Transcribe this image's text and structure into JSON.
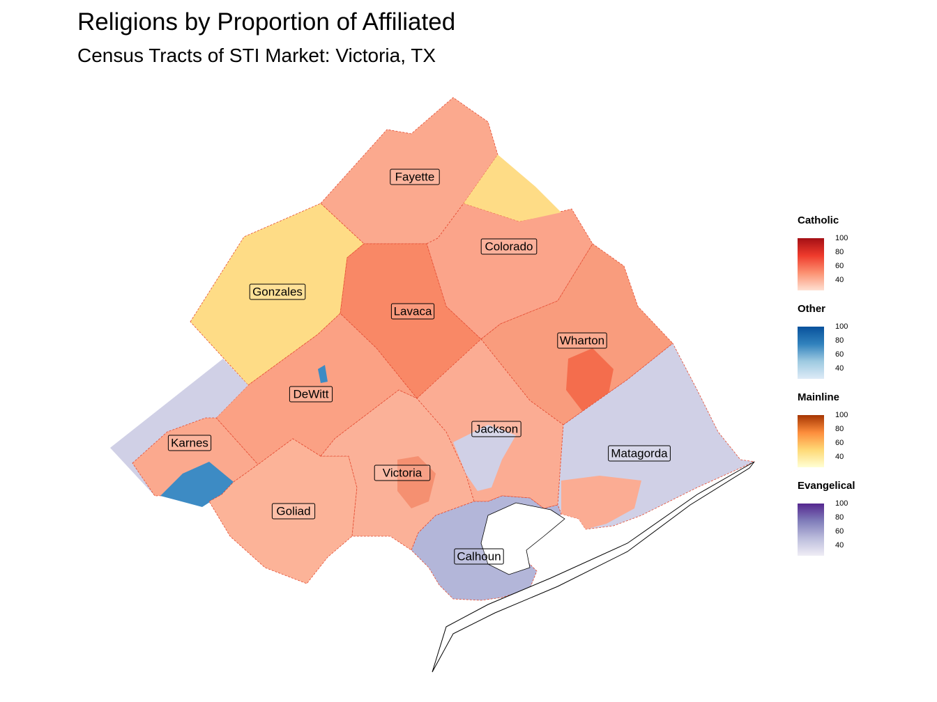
{
  "title": "Religions by Proportion of Affiliated",
  "subtitle": "Census Tracts of STI Market: Victoria, TX",
  "counties": [
    {
      "name": "Fayette",
      "fill": "#fba98e"
    },
    {
      "name": "Colorado",
      "fill": "#fba48a"
    },
    {
      "name": "Gonzales",
      "fill": "#fedc86"
    },
    {
      "name": "Lavaca",
      "fill": "#f98866"
    },
    {
      "name": "Wharton",
      "fill": "#f99c7d"
    },
    {
      "name": "DeWitt",
      "fill": "#fba184"
    },
    {
      "name": "Karnes",
      "fill": "#fba98e"
    },
    {
      "name": "Jackson",
      "fill": "#fbac93"
    },
    {
      "name": "Matagorda",
      "fill": "#d0d0e6"
    },
    {
      "name": "Victoria",
      "fill": "#fbb198"
    },
    {
      "name": "Goliad",
      "fill": "#fcb398"
    },
    {
      "name": "Calhoun",
      "fill": "#b3b6d9"
    }
  ],
  "legend": [
    {
      "title": "Catholic",
      "ticks": [
        "100",
        "80",
        "60",
        "40"
      ],
      "colors": [
        "#a50f15",
        "#ef3b2c",
        "#fc9272",
        "#fee0d2"
      ]
    },
    {
      "title": "Other",
      "ticks": [
        "100",
        "80",
        "60",
        "40"
      ],
      "colors": [
        "#08519c",
        "#3182bd",
        "#9ecae1",
        "#deebf7"
      ]
    },
    {
      "title": "Mainline",
      "ticks": [
        "100",
        "80",
        "60",
        "40"
      ],
      "colors": [
        "#a63603",
        "#fd8d3c",
        "#fed976",
        "#ffffd4"
      ]
    },
    {
      "title": "Evangelical",
      "ticks": [
        "100",
        "80",
        "60",
        "40"
      ],
      "colors": [
        "#54278f",
        "#807dba",
        "#bcbddc",
        "#efedf5"
      ]
    }
  ]
}
